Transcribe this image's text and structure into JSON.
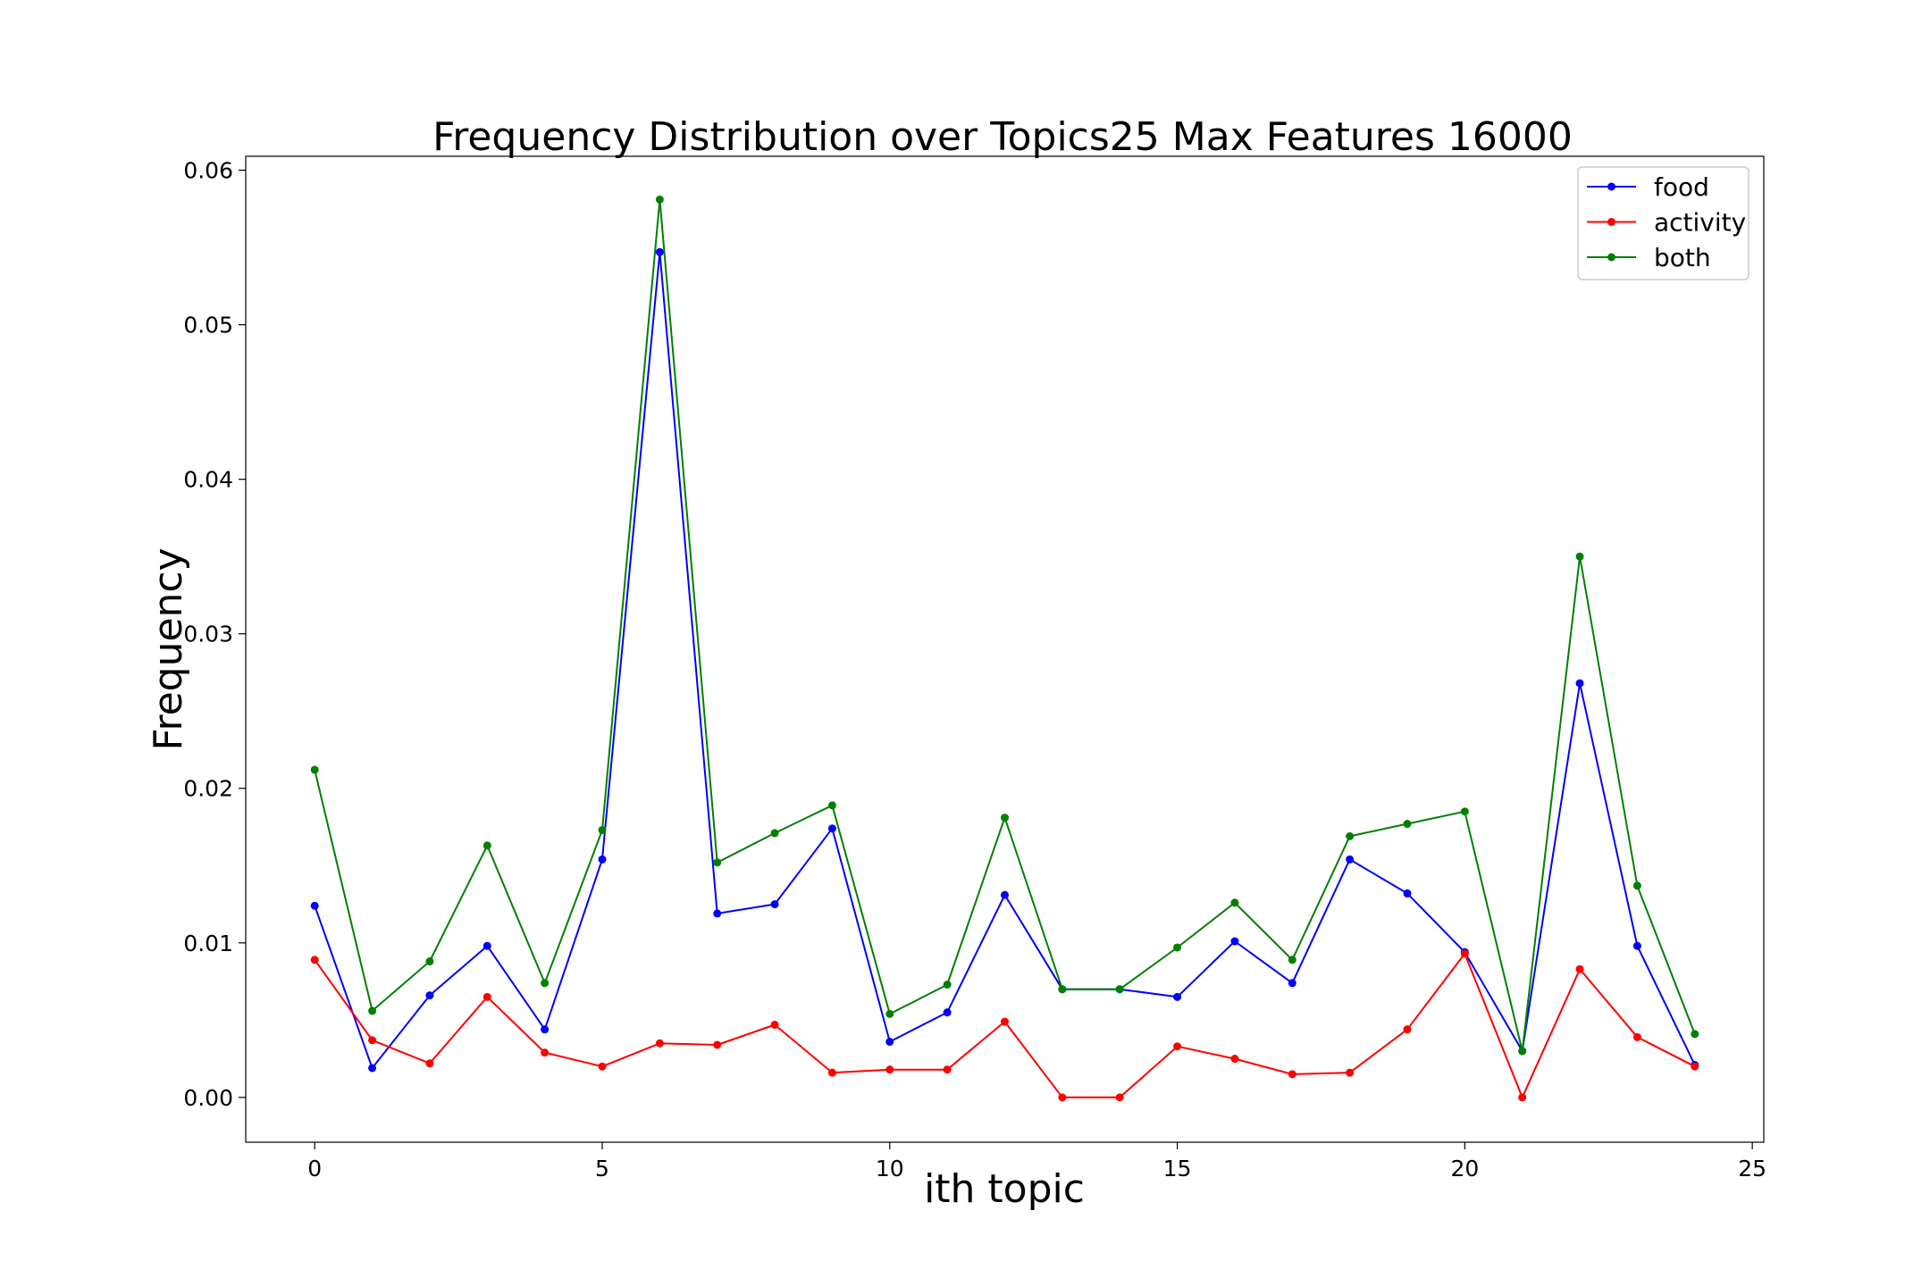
{
  "chart_data": {
    "type": "line",
    "title": "Frequency Distribution over Topics25 Max Features 16000",
    "xlabel": "ith topic",
    "ylabel": "Frequency",
    "xlim": [
      -1.2,
      25.2
    ],
    "ylim": [
      -0.0029,
      0.0609
    ],
    "xticks": [
      0,
      5,
      10,
      15,
      20,
      25
    ],
    "xtick_labels": [
      "0",
      "5",
      "10",
      "15",
      "20",
      "25"
    ],
    "yticks": [
      0.0,
      0.01,
      0.02,
      0.03,
      0.04,
      0.05,
      0.06
    ],
    "ytick_labels": [
      "0.00",
      "0.01",
      "0.02",
      "0.03",
      "0.04",
      "0.05",
      "0.06"
    ],
    "grid": false,
    "legend_position": "top-right",
    "x": [
      0,
      1,
      2,
      3,
      4,
      5,
      6,
      7,
      8,
      9,
      10,
      11,
      12,
      13,
      14,
      15,
      16,
      17,
      18,
      19,
      20,
      21,
      22,
      23,
      24
    ],
    "series": [
      {
        "name": "food",
        "color": "#0000ff",
        "values": [
          0.0124,
          0.0019,
          0.0066,
          0.0098,
          0.0044,
          0.0154,
          0.0547,
          0.0119,
          0.0125,
          0.0174,
          0.0036,
          0.0055,
          0.0131,
          0.007,
          0.007,
          0.0065,
          0.0101,
          0.0074,
          0.0154,
          0.0132,
          0.0094,
          0.003,
          0.0268,
          0.0098,
          0.0021
        ]
      },
      {
        "name": "activity",
        "color": "#ff0000",
        "values": [
          0.0089,
          0.0037,
          0.0022,
          0.0065,
          0.0029,
          0.002,
          0.0035,
          0.0034,
          0.0047,
          0.0016,
          0.0018,
          0.0018,
          0.0049,
          0.0,
          0.0,
          0.0033,
          0.0025,
          0.0015,
          0.0016,
          0.0044,
          0.0093,
          0.0,
          0.0083,
          0.0039,
          0.002
        ]
      },
      {
        "name": "both",
        "color": "#008000",
        "values": [
          0.0212,
          0.0056,
          0.0088,
          0.0163,
          0.0074,
          0.0173,
          0.0581,
          0.0152,
          0.0171,
          0.0189,
          0.0054,
          0.0073,
          0.0181,
          0.007,
          0.007,
          0.0097,
          0.0126,
          0.0089,
          0.0169,
          0.0177,
          0.0185,
          0.003,
          0.035,
          0.0137,
          0.0041
        ]
      }
    ]
  }
}
